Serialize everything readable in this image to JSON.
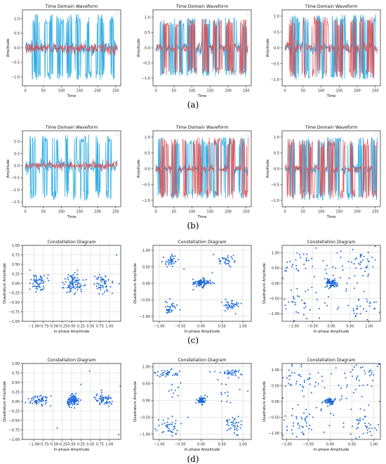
{
  "captions": [
    "(a)",
    "(b)",
    "(c)",
    "(d)"
  ],
  "colors": {
    "series_blue": "#29abe2",
    "series_red": "#d9484c",
    "scatter": "#1a67d8",
    "grid": "#d8d8d8"
  },
  "chart_data": [
    {
      "id": "a1",
      "type": "line",
      "title": "Time Domain Waveform",
      "xlabel": "Time",
      "ylabel": "Amplitude",
      "xlim": [
        -8,
        264
      ],
      "ylim": [
        -1.3,
        1.3
      ],
      "xticks": [
        0,
        50,
        100,
        150,
        200,
        250
      ],
      "yticks": [
        -1.0,
        -0.5,
        0.0,
        0.5,
        1.0
      ],
      "series": [
        {
          "color": "#29abe2",
          "pattern": "burst",
          "seed": 11,
          "low": -1.1,
          "high": 1.15,
          "noise": 0.12
        },
        {
          "color": "#d9484c",
          "pattern": "noise",
          "seed": 12,
          "amp": 0.16
        }
      ]
    },
    {
      "id": "a2",
      "type": "line",
      "title": "Time Domain Waveform",
      "xlabel": "Time",
      "ylabel": "Amplitude",
      "xlim": [
        -8,
        264
      ],
      "ylim": [
        -1.25,
        1.25
      ],
      "xticks": [
        0,
        50,
        100,
        150,
        200,
        250
      ],
      "yticks": [
        -1.0,
        -0.5,
        0.0,
        0.5,
        1.0
      ],
      "series": [
        {
          "color": "#29abe2",
          "pattern": "burst",
          "seed": 21,
          "low": -0.95,
          "high": 1.0,
          "noise": 0.1
        },
        {
          "color": "#d9484c",
          "pattern": "burst",
          "seed": 22,
          "low": -0.9,
          "high": 0.95,
          "noise": 0.08
        }
      ]
    },
    {
      "id": "a3",
      "type": "line",
      "title": "Time Domain Waveform",
      "xlabel": "Time",
      "ylabel": "Amplitude",
      "xlim": [
        -8,
        264
      ],
      "ylim": [
        -1.2,
        1.2
      ],
      "xticks": [
        0,
        50,
        100,
        150,
        200,
        250
      ],
      "yticks": [
        -1.0,
        -0.5,
        0.0,
        0.5,
        1.0
      ],
      "series": [
        {
          "color": "#29abe2",
          "pattern": "burst",
          "seed": 31,
          "low": -1.0,
          "high": 1.05,
          "noise": 0.1
        },
        {
          "color": "#d9484c",
          "pattern": "burst",
          "seed": 32,
          "low": -0.95,
          "high": 1.0,
          "noise": 0.08
        }
      ]
    },
    {
      "id": "b1",
      "type": "line",
      "title": "Time Domain Waveform",
      "xlabel": "Time",
      "ylabel": "Amplitude",
      "xlim": [
        -8,
        264
      ],
      "ylim": [
        -1.7,
        1.45
      ],
      "xticks": [
        0,
        50,
        100,
        150,
        200,
        250
      ],
      "yticks": [
        -1.5,
        -1.0,
        -0.5,
        0.0,
        0.5,
        1.0
      ],
      "series": [
        {
          "color": "#29abe2",
          "pattern": "burst",
          "seed": 41,
          "low": -1.45,
          "high": 1.3,
          "noise": 0.14
        },
        {
          "color": "#d9484c",
          "pattern": "noise",
          "seed": 42,
          "amp": 0.14
        }
      ]
    },
    {
      "id": "b2",
      "type": "line",
      "title": "Time Domain Waveform",
      "xlabel": "Time",
      "ylabel": "Amplitude",
      "xlim": [
        -8,
        264
      ],
      "ylim": [
        -1.2,
        1.2
      ],
      "xticks": [
        0,
        50,
        100,
        150,
        200,
        250
      ],
      "yticks": [
        -1.0,
        -0.5,
        0.0,
        0.5,
        1.0
      ],
      "series": [
        {
          "color": "#29abe2",
          "pattern": "burst",
          "seed": 51,
          "low": -0.95,
          "high": 1.0,
          "noise": 0.08
        },
        {
          "color": "#d9484c",
          "pattern": "burst",
          "seed": 52,
          "low": -0.95,
          "high": 1.0,
          "noise": 0.06
        }
      ]
    },
    {
      "id": "b3",
      "type": "line",
      "title": "Time Domain Waveform",
      "xlabel": "Time",
      "ylabel": "Amplitude",
      "xlim": [
        -8,
        264
      ],
      "ylim": [
        -1.2,
        1.2
      ],
      "xticks": [
        0,
        50,
        100,
        150,
        200,
        250
      ],
      "yticks": [
        -1.0,
        -0.5,
        0.0,
        0.5,
        1.0
      ],
      "series": [
        {
          "color": "#29abe2",
          "pattern": "burst",
          "seed": 61,
          "low": -1.0,
          "high": 1.0,
          "noise": 0.08
        },
        {
          "color": "#d9484c",
          "pattern": "burst",
          "seed": 62,
          "low": -0.95,
          "high": 0.95,
          "noise": 0.06
        }
      ]
    },
    {
      "id": "c1",
      "type": "scatter",
      "title": "Constellation Diagram",
      "xlabel": "In-phase Amplitude",
      "ylabel": "Quadrature Amplitude",
      "xlim": [
        -1.3,
        1.3
      ],
      "ylim": [
        -1.0,
        1.0
      ],
      "xticks": [
        -1.0,
        -0.75,
        -0.5,
        -0.25,
        0.0,
        0.25,
        0.5,
        0.75,
        1.0
      ],
      "yticks": [
        -1.0,
        -0.75,
        -0.5,
        -0.25,
        0.0,
        0.25,
        0.5,
        0.75,
        1.0
      ],
      "clusters": [
        {
          "x": -0.85,
          "y": 0.0,
          "sx": 0.12,
          "sy": 0.14,
          "n": 60
        },
        {
          "x": 0.05,
          "y": 0.02,
          "sx": 0.13,
          "sy": 0.12,
          "n": 90
        },
        {
          "x": 0.85,
          "y": 0.0,
          "sx": 0.12,
          "sy": 0.13,
          "n": 55
        }
      ],
      "seed": 71,
      "outliers": 4
    },
    {
      "id": "c2",
      "type": "scatter",
      "title": "Constellation Diagram",
      "xlabel": "In-phase Amplitude",
      "ylabel": "Quadrature Amplitude",
      "xlim": [
        -1.15,
        1.2
      ],
      "ylim": [
        -1.15,
        1.15
      ],
      "xticks": [
        -1.0,
        -0.5,
        0.0,
        0.5,
        1.0
      ],
      "yticks": [
        -1.0,
        -0.5,
        0.0,
        0.5,
        1.0
      ],
      "clusters": [
        {
          "x": -0.72,
          "y": 0.68,
          "sx": 0.09,
          "sy": 0.08,
          "n": 35
        },
        {
          "x": 0.62,
          "y": 0.7,
          "sx": 0.1,
          "sy": 0.08,
          "n": 30
        },
        {
          "x": 0.0,
          "y": 0.02,
          "sx": 0.1,
          "sy": 0.06,
          "n": 90
        },
        {
          "x": -0.72,
          "y": -0.72,
          "sx": 0.07,
          "sy": 0.1,
          "n": 35
        },
        {
          "x": 0.72,
          "y": -0.65,
          "sx": 0.11,
          "sy": 0.08,
          "n": 40
        }
      ],
      "seed": 72,
      "outliers": 5
    },
    {
      "id": "c3",
      "type": "scatter",
      "title": "Constellation Diagram",
      "xlabel": "In-phase Amplitude",
      "ylabel": "Quadrature Amplitude",
      "xlim": [
        -1.3,
        1.3
      ],
      "ylim": [
        -1.25,
        1.25
      ],
      "xticks": [
        -1.0,
        -0.5,
        0.0,
        0.5,
        1.0
      ],
      "yticks": [
        -1.0,
        -0.5,
        0.0,
        0.5,
        1.0
      ],
      "clusters": [
        {
          "x": 0.0,
          "y": 0.0,
          "sx": 0.08,
          "sy": 0.06,
          "n": 70
        },
        {
          "x": -0.85,
          "y": 0.7,
          "sx": 0.25,
          "sy": 0.25,
          "n": 30
        },
        {
          "x": 0.85,
          "y": 0.7,
          "sx": 0.25,
          "sy": 0.25,
          "n": 30
        },
        {
          "x": -0.85,
          "y": -0.75,
          "sx": 0.25,
          "sy": 0.25,
          "n": 30
        },
        {
          "x": 0.85,
          "y": -0.75,
          "sx": 0.25,
          "sy": 0.25,
          "n": 30
        },
        {
          "x": 0.0,
          "y": 0.0,
          "sx": 0.55,
          "sy": 0.55,
          "n": 40
        }
      ],
      "seed": 73,
      "outliers": 6
    },
    {
      "id": "d1",
      "type": "scatter",
      "title": "Constellation Diagram",
      "xlabel": "In-phase Amplitude",
      "ylabel": "Quadrature Amplitude",
      "xlim": [
        -1.3,
        1.3
      ],
      "ylim": [
        -1.0,
        1.0
      ],
      "xticks": [
        -1.0,
        -0.75,
        -0.5,
        -0.25,
        0.0,
        0.25,
        0.5,
        0.75,
        1.0
      ],
      "yticks": [
        -1.0,
        -0.75,
        -0.5,
        -0.25,
        0.0,
        0.25,
        0.5,
        0.75,
        1.0
      ],
      "clusters": [
        {
          "x": -0.85,
          "y": 0.03,
          "sx": 0.13,
          "sy": 0.07,
          "n": 55
        },
        {
          "x": 0.05,
          "y": 0.02,
          "sx": 0.08,
          "sy": 0.07,
          "n": 100
        },
        {
          "x": 0.85,
          "y": 0.03,
          "sx": 0.14,
          "sy": 0.08,
          "n": 55
        }
      ],
      "seed": 81,
      "outliers": 6
    },
    {
      "id": "d2",
      "type": "scatter",
      "title": "Constellation Diagram",
      "xlabel": "In-phase Amplitude",
      "ylabel": "Quadrature Amplitude",
      "xlim": [
        -1.15,
        1.2
      ],
      "ylim": [
        -1.15,
        1.1
      ],
      "xticks": [
        -1.0,
        -0.5,
        0.0,
        0.5,
        1.0
      ],
      "yticks": [
        -1.0,
        -0.5,
        0.0,
        0.5,
        1.0
      ],
      "clusters": [
        {
          "x": -0.78,
          "y": 0.8,
          "sx": 0.15,
          "sy": 0.06,
          "n": 35
        },
        {
          "x": 0.75,
          "y": 0.8,
          "sx": 0.15,
          "sy": 0.06,
          "n": 35
        },
        {
          "x": 0.0,
          "y": 0.0,
          "sx": 0.05,
          "sy": 0.05,
          "n": 60
        },
        {
          "x": -0.8,
          "y": -0.75,
          "sx": 0.12,
          "sy": 0.15,
          "n": 40
        },
        {
          "x": 0.78,
          "y": -0.72,
          "sx": 0.12,
          "sy": 0.15,
          "n": 40
        },
        {
          "x": -0.6,
          "y": 0.2,
          "sx": 0.1,
          "sy": 0.25,
          "n": 10
        },
        {
          "x": 0.6,
          "y": 0.2,
          "sx": 0.1,
          "sy": 0.25,
          "n": 10
        }
      ],
      "seed": 82,
      "outliers": 4
    },
    {
      "id": "d3",
      "type": "scatter",
      "title": "Constellation Diagram",
      "xlabel": "In-phase Amplitude",
      "ylabel": "Quadrature Amplitude",
      "xlim": [
        -1.1,
        1.15
      ],
      "ylim": [
        -1.2,
        1.2
      ],
      "xticks": [
        -1.0,
        -0.5,
        0.0,
        0.5,
        1.0
      ],
      "yticks": [
        -1.0,
        -0.5,
        0.0,
        0.5,
        1.0
      ],
      "clusters": [
        {
          "x": 0.0,
          "y": 0.0,
          "sx": 0.06,
          "sy": 0.05,
          "n": 70
        },
        {
          "x": -0.75,
          "y": 0.8,
          "sx": 0.22,
          "sy": 0.22,
          "n": 35
        },
        {
          "x": 0.8,
          "y": 0.8,
          "sx": 0.22,
          "sy": 0.22,
          "n": 35
        },
        {
          "x": -0.75,
          "y": -0.8,
          "sx": 0.22,
          "sy": 0.22,
          "n": 35
        },
        {
          "x": 0.8,
          "y": -0.8,
          "sx": 0.22,
          "sy": 0.22,
          "n": 35
        },
        {
          "x": 0.0,
          "y": 0.0,
          "sx": 0.55,
          "sy": 0.55,
          "n": 45
        }
      ],
      "seed": 83,
      "outliers": 6
    }
  ]
}
